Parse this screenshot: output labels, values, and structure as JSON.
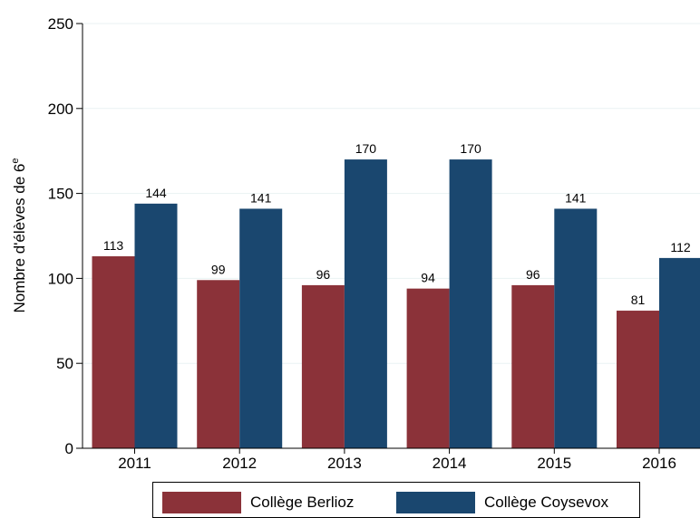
{
  "chart_data": {
    "type": "bar",
    "ylabel_main": "Nombre d'élèves de 6",
    "ylabel_sup": "e",
    "ylim": [
      0,
      250
    ],
    "yticks": [
      0,
      50,
      100,
      150,
      200,
      250
    ],
    "grid": true,
    "legend_position": "bottom",
    "categories": [
      "2011",
      "2012",
      "2013",
      "2014",
      "2015",
      "2016"
    ],
    "series": [
      {
        "name": "Collège Berlioz",
        "color": "#8b3239",
        "values": [
          113,
          99,
          96,
          94,
          96,
          81
        ]
      },
      {
        "name": "Collège Coysevox",
        "color": "#1a476f",
        "values": [
          144,
          141,
          170,
          170,
          141,
          112
        ]
      }
    ]
  }
}
